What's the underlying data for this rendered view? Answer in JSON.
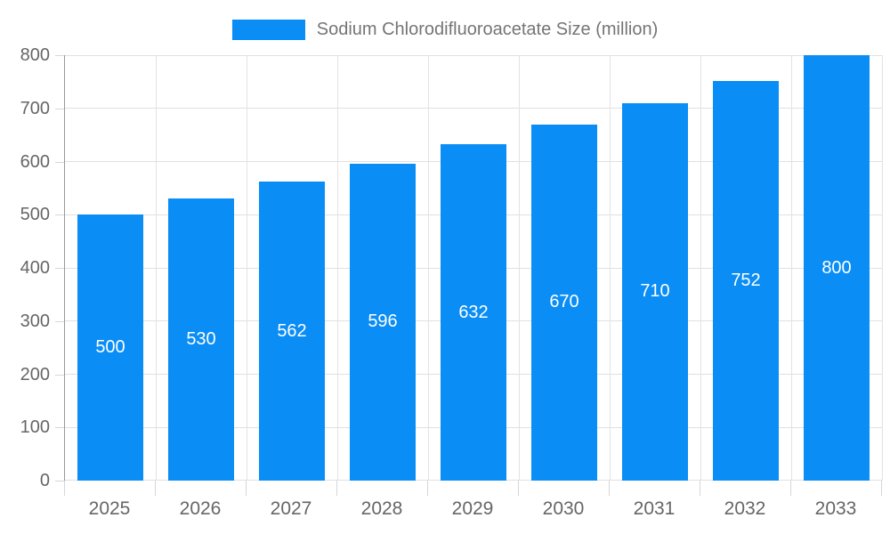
{
  "chart_data": {
    "type": "bar",
    "title": "Sodium Chlorodifluoroacetate Size (million)",
    "categories": [
      "2025",
      "2026",
      "2027",
      "2028",
      "2029",
      "2030",
      "2031",
      "2032",
      "2033"
    ],
    "values": [
      500,
      530,
      562,
      596,
      632,
      670,
      710,
      752,
      800
    ],
    "xlabel": "",
    "ylabel": "",
    "ylim": [
      0,
      800
    ],
    "yticks": [
      0,
      100,
      200,
      300,
      400,
      500,
      600,
      700,
      800
    ],
    "grid": true,
    "legend_position": "top-center",
    "value_labels": "inside-center"
  },
  "legend": {
    "label": "Sodium Chlorodifluoroacetate Size (million)"
  },
  "colors": {
    "background": "#ffffff",
    "bar": "#0a8df5",
    "grid_line": "#e0e0e0",
    "axis_line": "#999999",
    "tick_text": "#666666",
    "legend_text": "#757575",
    "value_label_text": "#ffffff"
  }
}
